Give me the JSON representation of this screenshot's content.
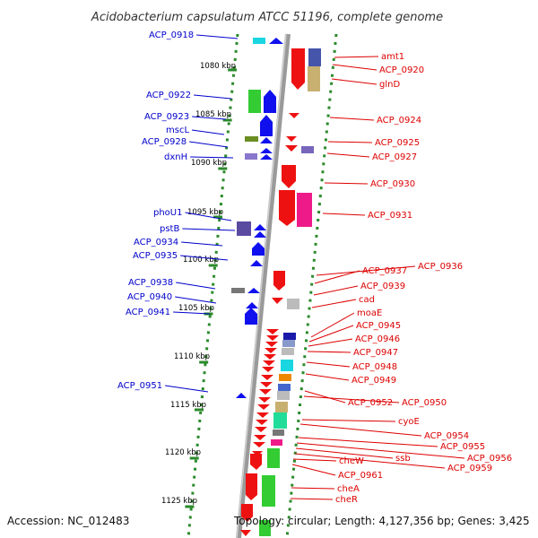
{
  "title": "Acidobacterium capsulatum ATCC 51196, complete genome",
  "accession": "Accession: NC_012483",
  "topology": "Topology: circular; Length: 4,127,356 bp; Genes: 3,425",
  "colors": {
    "plus_label": "#0000cc",
    "minus_label": "#dd0000",
    "ruler": "#2b8a2b",
    "backbone": "#888888"
  },
  "scale_ticks": [
    "1080 kbp",
    "1085 kbp",
    "1090 kbp",
    "1095 kbp",
    "1100 kbp",
    "1105 kbp",
    "1110 kbp",
    "1115 kbp",
    "1120 kbp",
    "1125 kbp"
  ],
  "left_labels": [
    "ACP_0918",
    "ACP_0922",
    "ACP_0923",
    "mscL",
    "ACP_0928",
    "dxnH",
    "phoU1",
    "pstB",
    "ACP_0934",
    "ACP_0935",
    "ACP_0938",
    "ACP_0940",
    "ACP_0941",
    "ACP_0951"
  ],
  "right_labels": [
    "amt1",
    "ACP_0920",
    "glnD",
    "ACP_0924",
    "ACP_0925",
    "ACP_0927",
    "ACP_0930",
    "ACP_0931",
    "ACP_0936",
    "ACP_0937",
    "ACP_0939",
    "cad",
    "moaE",
    "ACP_0945",
    "ACP_0946",
    "ACP_0947",
    "ACP_0948",
    "ACP_0949",
    "ACP_0952",
    "ACP_0950",
    "cyoE",
    "ACP_0954",
    "ACP_0955",
    "ACP_0956",
    "ssb",
    "ACP_0959",
    "cheW",
    "ACP_0961",
    "cheA",
    "cheR"
  ]
}
